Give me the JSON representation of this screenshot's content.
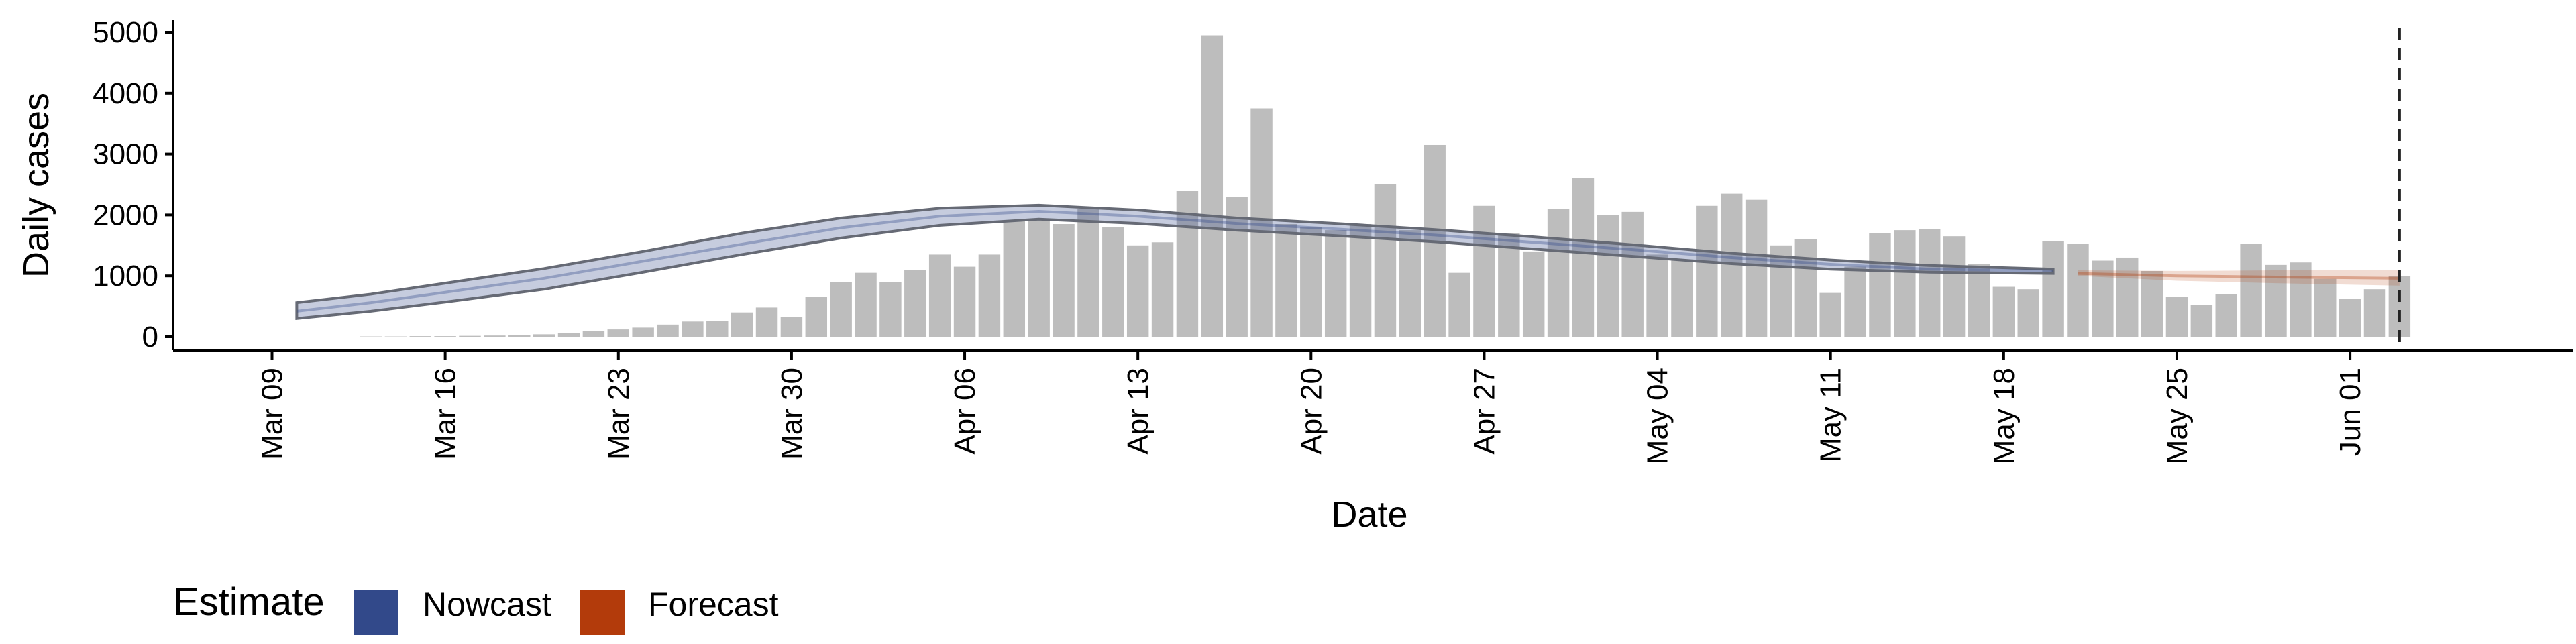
{
  "chart_data": {
    "type": "bar",
    "xlabel": "Date",
    "ylabel": "Daily cases",
    "ylim": [
      0,
      5000
    ],
    "yticks": [
      0,
      1000,
      2000,
      3000,
      4000,
      5000
    ],
    "x_ticks": [
      {
        "date": "2020-03-09",
        "label": "Mar 09"
      },
      {
        "date": "2020-03-16",
        "label": "Mar 16"
      },
      {
        "date": "2020-03-23",
        "label": "Mar 23"
      },
      {
        "date": "2020-03-30",
        "label": "Mar 30"
      },
      {
        "date": "2020-04-06",
        "label": "Apr 06"
      },
      {
        "date": "2020-04-13",
        "label": "Apr 13"
      },
      {
        "date": "2020-04-20",
        "label": "Apr 20"
      },
      {
        "date": "2020-04-27",
        "label": "Apr 27"
      },
      {
        "date": "2020-05-04",
        "label": "May 04"
      },
      {
        "date": "2020-05-11",
        "label": "May 11"
      },
      {
        "date": "2020-05-18",
        "label": "May 18"
      },
      {
        "date": "2020-05-25",
        "label": "May 25"
      },
      {
        "date": "2020-06-01",
        "label": "Jun 01"
      }
    ],
    "x_range": [
      "2020-03-05",
      "2020-06-10"
    ],
    "reference_line_date": "2020-06-03",
    "grid": false,
    "legend_position": "bottom-left",
    "bars": {
      "color": "#bdbdbd",
      "dates": [
        "2020-03-13",
        "2020-03-14",
        "2020-03-15",
        "2020-03-16",
        "2020-03-17",
        "2020-03-18",
        "2020-03-19",
        "2020-03-20",
        "2020-03-21",
        "2020-03-22",
        "2020-03-23",
        "2020-03-24",
        "2020-03-25",
        "2020-03-26",
        "2020-03-27",
        "2020-03-28",
        "2020-03-29",
        "2020-03-30",
        "2020-03-31",
        "2020-04-01",
        "2020-04-02",
        "2020-04-03",
        "2020-04-04",
        "2020-04-05",
        "2020-04-06",
        "2020-04-07",
        "2020-04-08",
        "2020-04-09",
        "2020-04-10",
        "2020-04-11",
        "2020-04-12",
        "2020-04-13",
        "2020-04-14",
        "2020-04-15",
        "2020-04-16",
        "2020-04-17",
        "2020-04-18",
        "2020-04-19",
        "2020-04-20",
        "2020-04-21",
        "2020-04-22",
        "2020-04-23",
        "2020-04-24",
        "2020-04-25",
        "2020-04-26",
        "2020-04-27",
        "2020-04-28",
        "2020-04-29",
        "2020-04-30",
        "2020-05-01",
        "2020-05-02",
        "2020-05-03",
        "2020-05-04",
        "2020-05-05",
        "2020-05-06",
        "2020-05-07",
        "2020-05-08",
        "2020-05-09",
        "2020-05-10",
        "2020-05-11",
        "2020-05-12",
        "2020-05-13",
        "2020-05-14",
        "2020-05-15",
        "2020-05-16",
        "2020-05-17",
        "2020-05-18",
        "2020-05-19",
        "2020-05-20",
        "2020-05-21",
        "2020-05-22",
        "2020-05-23",
        "2020-05-24",
        "2020-05-25",
        "2020-05-26",
        "2020-05-27",
        "2020-05-28",
        "2020-05-29",
        "2020-05-30",
        "2020-05-31",
        "2020-06-01",
        "2020-06-02",
        "2020-06-03"
      ],
      "values": [
        5,
        5,
        10,
        10,
        15,
        20,
        30,
        40,
        60,
        90,
        120,
        150,
        200,
        250,
        260,
        400,
        480,
        330,
        650,
        900,
        1050,
        900,
        1100,
        1350,
        1150,
        1350,
        1900,
        1920,
        1850,
        2100,
        1800,
        1500,
        1550,
        2400,
        4950,
        2300,
        3750,
        1850,
        1800,
        1750,
        1850,
        2500,
        1750,
        3150,
        1050,
        2150,
        1700,
        1400,
        2100,
        2600,
        2000,
        2050,
        1350,
        1250,
        2150,
        2350,
        2250,
        1500,
        1600,
        720,
        1150,
        1700,
        1750,
        1770,
        1650,
        1200,
        820,
        780,
        1570,
        1520,
        1250,
        1300,
        1080,
        650,
        520,
        700,
        1520,
        1180,
        1220,
        950,
        620,
        780,
        1000
      ]
    },
    "series": [
      {
        "name": "Nowcast",
        "color": "#32498a",
        "x": [
          "2020-03-10",
          "2020-03-13",
          "2020-03-16",
          "2020-03-20",
          "2020-03-24",
          "2020-03-28",
          "2020-04-01",
          "2020-04-05",
          "2020-04-09",
          "2020-04-13",
          "2020-04-17",
          "2020-04-21",
          "2020-04-25",
          "2020-04-29",
          "2020-05-03",
          "2020-05-07",
          "2020-05-11",
          "2020-05-15",
          "2020-05-20"
        ],
        "median": [
          420,
          560,
          730,
          960,
          1240,
          1520,
          1790,
          1980,
          2060,
          1980,
          1860,
          1770,
          1670,
          1550,
          1430,
          1300,
          1190,
          1110,
          1080
        ],
        "lower": [
          300,
          420,
          570,
          780,
          1060,
          1350,
          1620,
          1830,
          1930,
          1860,
          1750,
          1660,
          1560,
          1440,
          1320,
          1200,
          1110,
          1060,
          1040
        ],
        "upper": [
          560,
          700,
          880,
          1120,
          1400,
          1700,
          1950,
          2110,
          2160,
          2080,
          1950,
          1860,
          1760,
          1640,
          1510,
          1370,
          1260,
          1170,
          1110
        ]
      },
      {
        "name": "Forecast",
        "color": "#b33b0b",
        "x": [
          "2020-05-21",
          "2020-05-25",
          "2020-05-29",
          "2020-06-03"
        ],
        "median": [
          1040,
          1000,
          980,
          960
        ],
        "lower": [
          1000,
          920,
          880,
          840
        ],
        "upper": [
          1090,
          1080,
          1090,
          1100
        ]
      }
    ],
    "legend": {
      "title": "Estimate",
      "items": [
        {
          "label": "Nowcast",
          "color": "#32498a"
        },
        {
          "label": "Forecast",
          "color": "#b33b0b"
        }
      ]
    }
  }
}
